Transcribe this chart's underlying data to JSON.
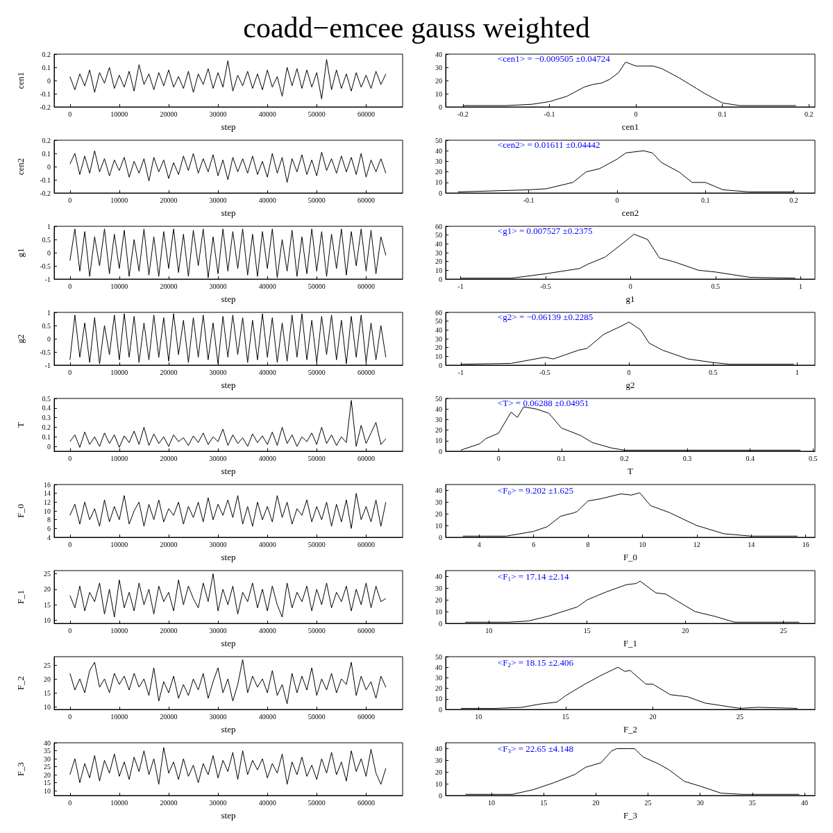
{
  "chart_data": [
    {
      "type": "line",
      "title": "coadd−emcee gauss weighted",
      "xlabel": "step",
      "ylabel": "cen1",
      "color": "#000000",
      "xlim": [
        -3200,
        67400
      ],
      "xticks": [
        0,
        10000,
        20000,
        30000,
        40000,
        50000,
        60000
      ],
      "ylim": [
        -0.2,
        0.2
      ],
      "yticks": [
        -0.2,
        -0.1,
        0,
        0.1,
        0.2
      ],
      "x": [
        0,
        1000,
        2000,
        3000,
        4000,
        5000,
        6000,
        7000,
        8000,
        9000,
        10000,
        11000,
        12000,
        13000,
        14000,
        15000,
        16000,
        17000,
        18000,
        19000,
        20000,
        21000,
        22000,
        23000,
        24000,
        25000,
        26000,
        27000,
        28000,
        29000,
        30000,
        31000,
        32000,
        33000,
        34000,
        35000,
        36000,
        37000,
        38000,
        39000,
        40000,
        41000,
        42000,
        43000,
        44000,
        45000,
        46000,
        47000,
        48000,
        49000,
        50000,
        51000,
        52000,
        53000,
        54000,
        55000,
        56000,
        57000,
        58000,
        59000,
        60000,
        61000,
        62000,
        63000,
        64000
      ],
      "values": [
        0.03,
        -0.07,
        0.05,
        -0.04,
        0.08,
        -0.09,
        0.06,
        -0.02,
        0.1,
        -0.06,
        0.04,
        -0.05,
        0.07,
        -0.08,
        0.12,
        -0.03,
        0.05,
        -0.07,
        0.06,
        -0.04,
        0.08,
        -0.05,
        0.03,
        -0.06,
        0.07,
        -0.09,
        0.05,
        -0.03,
        0.09,
        -0.06,
        0.06,
        -0.05,
        0.15,
        -0.08,
        0.04,
        -0.04,
        0.07,
        -0.06,
        0.05,
        -0.07,
        0.08,
        -0.05,
        0.03,
        -0.12,
        0.1,
        -0.04,
        0.09,
        -0.06,
        0.08,
        -0.05,
        0.06,
        -0.14,
        0.16,
        -0.07,
        0.08,
        -0.06,
        0.05,
        -0.08,
        0.06,
        -0.05,
        0.04,
        -0.06,
        0.07,
        -0.03,
        0.05
      ]
    },
    {
      "type": "line",
      "xlabel": "cen1",
      "annotations": [
        "<cen1> = −0.009505 ±0.04724"
      ],
      "color": "#000000",
      "xlim": [
        -0.22,
        0.207
      ],
      "xticks": [
        -0.2,
        -0.1,
        0,
        0.1,
        0.2
      ],
      "ylim": [
        0,
        40
      ],
      "yticks": [
        0,
        10,
        20,
        30,
        40
      ],
      "x": [
        -0.2,
        -0.15,
        -0.12,
        -0.1,
        -0.08,
        -0.06,
        -0.05,
        -0.04,
        -0.03,
        -0.02,
        -0.012,
        0,
        0.01,
        0.02,
        0.03,
        0.05,
        0.07,
        0.08,
        0.1,
        0.12,
        0.15,
        0.185
      ],
      "values": [
        1,
        1,
        2,
        4,
        8,
        15,
        17,
        18,
        21,
        26,
        34,
        31,
        31,
        31,
        29,
        22,
        14,
        10,
        3,
        1,
        1,
        1
      ]
    },
    {
      "type": "line",
      "xlabel": "step",
      "ylabel": "cen2",
      "color": "#000000",
      "xlim": [
        -3200,
        67400
      ],
      "xticks": [
        0,
        10000,
        20000,
        30000,
        40000,
        50000,
        60000
      ],
      "ylim": [
        -0.2,
        0.2
      ],
      "yticks": [
        -0.2,
        -0.1,
        0,
        0.1,
        0.2
      ],
      "x": [
        0,
        1000,
        2000,
        3000,
        4000,
        5000,
        6000,
        7000,
        8000,
        9000,
        10000,
        11000,
        12000,
        13000,
        14000,
        15000,
        16000,
        17000,
        18000,
        19000,
        20000,
        21000,
        22000,
        23000,
        24000,
        25000,
        26000,
        27000,
        28000,
        29000,
        30000,
        31000,
        32000,
        33000,
        34000,
        35000,
        36000,
        37000,
        38000,
        39000,
        40000,
        41000,
        42000,
        43000,
        44000,
        45000,
        46000,
        47000,
        48000,
        49000,
        50000,
        51000,
        52000,
        53000,
        54000,
        55000,
        56000,
        57000,
        58000,
        59000,
        60000,
        61000,
        62000,
        63000,
        64000
      ],
      "values": [
        0.02,
        0.1,
        -0.06,
        0.08,
        -0.05,
        0.12,
        -0.04,
        0.06,
        -0.07,
        0.05,
        -0.03,
        0.07,
        -0.08,
        0.04,
        -0.05,
        0.06,
        -0.11,
        0.07,
        -0.04,
        0.05,
        -0.09,
        0.03,
        -0.06,
        0.08,
        -0.03,
        0.1,
        -0.05,
        0.06,
        -0.04,
        0.09,
        -0.07,
        0.05,
        -0.1,
        0.07,
        -0.04,
        0.06,
        -0.05,
        0.08,
        -0.06,
        0.04,
        -0.08,
        0.1,
        -0.05,
        0.07,
        -0.12,
        0.06,
        -0.04,
        0.09,
        -0.06,
        0.05,
        -0.07,
        0.11,
        -0.03,
        0.06,
        -0.05,
        0.08,
        -0.04,
        0.07,
        -0.06,
        0.1,
        -0.08,
        0.05,
        -0.04,
        0.06,
        -0.05
      ]
    },
    {
      "type": "line",
      "xlabel": "cen2",
      "annotations": [
        "<cen2> = 0.01611 ±0.04442"
      ],
      "color": "#000000",
      "xlim": [
        -0.194,
        0.224
      ],
      "xticks": [
        -0.1,
        0,
        0.1,
        0.2
      ],
      "ylim": [
        0,
        50
      ],
      "yticks": [
        0,
        10,
        20,
        30,
        40,
        50
      ],
      "x": [
        -0.18,
        -0.1,
        -0.08,
        -0.05,
        -0.035,
        -0.02,
        0,
        0.01,
        0.03,
        0.04,
        0.05,
        0.07,
        0.085,
        0.1,
        0.12,
        0.15,
        0.2
      ],
      "values": [
        1,
        3,
        4,
        10,
        20,
        23,
        32,
        38,
        40,
        38,
        29,
        20,
        10,
        10,
        3,
        1,
        1
      ]
    },
    {
      "type": "line",
      "xlabel": "step",
      "ylabel": "g1",
      "color": "#000000",
      "xlim": [
        -3200,
        67400
      ],
      "xticks": [
        0,
        10000,
        20000,
        30000,
        40000,
        50000,
        60000
      ],
      "ylim": [
        -1,
        1
      ],
      "yticks": [
        -1,
        -0.5,
        0,
        0.5,
        1
      ],
      "x": [
        0,
        1000,
        2000,
        3000,
        4000,
        5000,
        6000,
        7000,
        8000,
        9000,
        10000,
        11000,
        12000,
        13000,
        14000,
        15000,
        16000,
        17000,
        18000,
        19000,
        20000,
        21000,
        22000,
        23000,
        24000,
        25000,
        26000,
        27000,
        28000,
        29000,
        30000,
        31000,
        32000,
        33000,
        34000,
        35000,
        36000,
        37000,
        38000,
        39000,
        40000,
        41000,
        42000,
        43000,
        44000,
        45000,
        46000,
        47000,
        48000,
        49000,
        50000,
        51000,
        52000,
        53000,
        54000,
        55000,
        56000,
        57000,
        58000,
        59000,
        60000,
        61000,
        62000,
        63000,
        64000
      ],
      "values": [
        -0.3,
        0.9,
        -0.7,
        0.8,
        -0.9,
        0.6,
        -0.5,
        0.9,
        -0.8,
        0.7,
        -0.6,
        0.85,
        -0.9,
        0.5,
        -0.7,
        0.9,
        -0.85,
        0.6,
        -0.9,
        0.8,
        -0.6,
        0.9,
        -0.75,
        0.7,
        -0.9,
        0.85,
        -0.5,
        0.9,
        -0.95,
        0.6,
        -0.8,
        0.9,
        -0.7,
        0.8,
        -0.6,
        0.9,
        -0.85,
        0.7,
        -0.9,
        0.8,
        -0.6,
        0.9,
        -0.95,
        0.5,
        -0.7,
        0.85,
        -0.9,
        0.6,
        -0.8,
        0.9,
        -0.7,
        0.8,
        -0.9,
        0.7,
        -0.6,
        0.9,
        -0.85,
        0.8,
        -0.5,
        0.9,
        -0.7,
        0.85,
        -0.8,
        0.6,
        -0.1
      ]
    },
    {
      "type": "line",
      "xlabel": "g1",
      "annotations": [
        "<g1> = 0.007527 ±0.2375"
      ],
      "color": "#000000",
      "xlim": [
        -1.088,
        1.085
      ],
      "xticks": [
        -1,
        -0.5,
        0,
        0.5,
        1
      ],
      "ylim": [
        0,
        60
      ],
      "yticks": [
        0,
        10,
        20,
        30,
        40,
        50,
        60
      ],
      "x": [
        -1,
        -0.7,
        -0.5,
        -0.3,
        -0.25,
        -0.15,
        -0.05,
        0.02,
        0.1,
        0.17,
        0.25,
        0.4,
        0.5,
        0.7,
        0.97
      ],
      "values": [
        1,
        1,
        6,
        12,
        17,
        25,
        40,
        51,
        45,
        24,
        20,
        10,
        8,
        2,
        1
      ]
    },
    {
      "type": "line",
      "xlabel": "step",
      "ylabel": "g2",
      "color": "#000000",
      "xlim": [
        -3200,
        67400
      ],
      "xticks": [
        0,
        10000,
        20000,
        30000,
        40000,
        50000,
        60000
      ],
      "ylim": [
        -1,
        1
      ],
      "yticks": [
        -1,
        -0.5,
        0,
        0.5,
        1
      ],
      "x": [
        0,
        1000,
        2000,
        3000,
        4000,
        5000,
        6000,
        7000,
        8000,
        9000,
        10000,
        11000,
        12000,
        13000,
        14000,
        15000,
        16000,
        17000,
        18000,
        19000,
        20000,
        21000,
        22000,
        23000,
        24000,
        25000,
        26000,
        27000,
        28000,
        29000,
        30000,
        31000,
        32000,
        33000,
        34000,
        35000,
        36000,
        37000,
        38000,
        39000,
        40000,
        41000,
        42000,
        43000,
        44000,
        45000,
        46000,
        47000,
        48000,
        49000,
        50000,
        51000,
        52000,
        53000,
        54000,
        55000,
        56000,
        57000,
        58000,
        59000,
        60000,
        61000,
        62000,
        63000,
        64000
      ],
      "values": [
        -0.8,
        0.9,
        -0.7,
        0.6,
        -0.9,
        0.8,
        -0.95,
        0.5,
        -0.6,
        0.9,
        -0.8,
        0.95,
        -0.7,
        0.85,
        -0.9,
        0.6,
        -0.8,
        0.9,
        -0.7,
        0.8,
        -0.85,
        0.95,
        -0.6,
        0.7,
        -0.9,
        0.8,
        -0.7,
        0.9,
        -0.8,
        0.6,
        -0.95,
        0.85,
        -0.7,
        0.9,
        -0.6,
        0.8,
        -0.9,
        0.7,
        -0.8,
        0.95,
        -0.7,
        0.8,
        -0.9,
        0.6,
        -0.85,
        0.9,
        -0.7,
        0.95,
        -0.8,
        0.7,
        -0.9,
        0.85,
        -0.6,
        0.9,
        -0.8,
        0.7,
        -0.95,
        0.85,
        -0.7,
        0.9,
        -0.9,
        0.6,
        -0.8,
        0.5,
        -0.7
      ]
    },
    {
      "type": "line",
      "xlabel": "g2",
      "annotations": [
        "<g2> = −0.06139 ±0.2285"
      ],
      "color": "#000000",
      "xlim": [
        -1.09,
        1.106
      ],
      "xticks": [
        -1,
        -0.5,
        0,
        0.5,
        1
      ],
      "ylim": [
        0,
        60
      ],
      "yticks": [
        0,
        10,
        20,
        30,
        40,
        50,
        60
      ],
      "x": [
        -1,
        -0.7,
        -0.5,
        -0.45,
        -0.3,
        -0.25,
        -0.15,
        -0.05,
        0,
        0.07,
        0.12,
        0.2,
        0.35,
        0.5,
        0.6,
        0.98
      ],
      "values": [
        1,
        2,
        9,
        7,
        17,
        19,
        35,
        44,
        49,
        40,
        25,
        17,
        7,
        3,
        1,
        1
      ]
    },
    {
      "type": "line",
      "xlabel": "step",
      "ylabel": "T",
      "color": "#000000",
      "xlim": [
        -3200,
        67400
      ],
      "xticks": [
        0,
        10000,
        20000,
        30000,
        40000,
        50000,
        60000
      ],
      "ylim": [
        -0.05,
        0.5
      ],
      "yticks": [
        0,
        0.1,
        0.2,
        0.3,
        0.4,
        0.5
      ],
      "x": [
        0,
        1000,
        2000,
        3000,
        4000,
        5000,
        6000,
        7000,
        8000,
        9000,
        10000,
        11000,
        12000,
        13000,
        14000,
        15000,
        16000,
        17000,
        18000,
        19000,
        20000,
        21000,
        22000,
        23000,
        24000,
        25000,
        26000,
        27000,
        28000,
        29000,
        30000,
        31000,
        32000,
        33000,
        34000,
        35000,
        36000,
        37000,
        38000,
        39000,
        40000,
        41000,
        42000,
        43000,
        44000,
        45000,
        46000,
        47000,
        48000,
        49000,
        50000,
        51000,
        52000,
        53000,
        54000,
        55000,
        56000,
        57000,
        58000,
        59000,
        60000,
        61000,
        62000,
        63000,
        64000
      ],
      "values": [
        0.05,
        0.12,
        -0.01,
        0.15,
        0.02,
        0.1,
        0.0,
        0.14,
        0.03,
        0.12,
        -0.01,
        0.11,
        0.04,
        0.16,
        0.02,
        0.2,
        0.01,
        0.13,
        0.03,
        0.1,
        0.0,
        0.12,
        0.05,
        0.09,
        0.01,
        0.11,
        0.04,
        0.14,
        0.02,
        0.1,
        0.05,
        0.18,
        0.01,
        0.12,
        0.03,
        0.09,
        0.0,
        0.13,
        0.04,
        0.11,
        0.02,
        0.15,
        0.01,
        0.2,
        0.03,
        0.12,
        0.0,
        0.1,
        0.05,
        0.14,
        0.02,
        0.2,
        0.03,
        0.12,
        0.01,
        0.1,
        0.04,
        0.48,
        0.0,
        0.22,
        0.03,
        0.14,
        0.25,
        0.02,
        0.08
      ]
    },
    {
      "type": "line",
      "xlabel": "T",
      "annotations": [
        "<T> = 0.06288 ±0.04951"
      ],
      "color": "#000000",
      "xlim": [
        -0.084,
        0.503
      ],
      "xticks": [
        0,
        0.1,
        0.2,
        0.3,
        0.4,
        0.5
      ],
      "ylim": [
        0,
        50
      ],
      "yticks": [
        0,
        10,
        20,
        30,
        40,
        50
      ],
      "x": [
        -0.06,
        -0.03,
        -0.02,
        0,
        0.02,
        0.03,
        0.04,
        0.06,
        0.08,
        0.1,
        0.13,
        0.15,
        0.18,
        0.2,
        0.48
      ],
      "values": [
        1,
        7,
        12,
        17,
        37,
        32,
        42,
        40,
        36,
        22,
        15,
        8,
        3,
        1,
        1
      ]
    },
    {
      "type": "line",
      "xlabel": "step",
      "ylabel": "F_0",
      "color": "#000000",
      "xlim": [
        -3200,
        67400
      ],
      "xticks": [
        0,
        10000,
        20000,
        30000,
        40000,
        50000,
        60000
      ],
      "ylim": [
        4,
        16
      ],
      "yticks": [
        4,
        6,
        8,
        10,
        12,
        14,
        16
      ],
      "x": [
        0,
        1000,
        2000,
        3000,
        4000,
        5000,
        6000,
        7000,
        8000,
        9000,
        10000,
        11000,
        12000,
        13000,
        14000,
        15000,
        16000,
        17000,
        18000,
        19000,
        20000,
        21000,
        22000,
        23000,
        24000,
        25000,
        26000,
        27000,
        28000,
        29000,
        30000,
        31000,
        32000,
        33000,
        34000,
        35000,
        36000,
        37000,
        38000,
        39000,
        40000,
        41000,
        42000,
        43000,
        44000,
        45000,
        46000,
        47000,
        48000,
        49000,
        50000,
        51000,
        52000,
        53000,
        54000,
        55000,
        56000,
        57000,
        58000,
        59000,
        60000,
        61000,
        62000,
        63000,
        64000
      ],
      "values": [
        9,
        11.5,
        7,
        12,
        8,
        10.5,
        6.5,
        12.5,
        7.5,
        11,
        8,
        13.5,
        7,
        10,
        12,
        6.5,
        11.5,
        8,
        12.5,
        7.5,
        10.5,
        9,
        12,
        7,
        11,
        8.5,
        12,
        7.5,
        13,
        8,
        11.5,
        9,
        12.5,
        8.5,
        13.5,
        7,
        11,
        6.5,
        12,
        8,
        11,
        7.5,
        13.5,
        8.5,
        12,
        7,
        10.5,
        9,
        12.5,
        7.5,
        11,
        8,
        12,
        6.5,
        11.5,
        7.5,
        12.5,
        6,
        14,
        8,
        11,
        7.5,
        12.5,
        6.5,
        12
      ]
    },
    {
      "type": "line",
      "xlabel": "F_0",
      "annotations": [
        "<F$_{0}$> = 9.202 ±1.625"
      ],
      "color": "#000000",
      "xlim": [
        2.77,
        16.34
      ],
      "xticks": [
        4,
        6,
        8,
        10,
        12,
        14,
        16
      ],
      "ylim": [
        0,
        45
      ],
      "yticks": [
        0,
        10,
        20,
        30,
        40
      ],
      "x": [
        3.4,
        4.2,
        5,
        6,
        6.5,
        7,
        7.5,
        7.6,
        8,
        8.5,
        9.2,
        9.6,
        9.9,
        10.3,
        11,
        12,
        13,
        14,
        15.7
      ],
      "values": [
        1,
        1,
        1,
        5,
        9,
        18,
        21,
        22,
        31,
        33,
        37,
        36,
        38,
        27,
        21,
        10,
        3,
        1,
        1
      ]
    },
    {
      "type": "line",
      "xlabel": "step",
      "ylabel": "F_1",
      "color": "#000000",
      "xlim": [
        -3200,
        67400
      ],
      "xticks": [
        0,
        10000,
        20000,
        30000,
        40000,
        50000,
        60000
      ],
      "ylim": [
        9,
        26
      ],
      "yticks": [
        10,
        15,
        20,
        25
      ],
      "x": [
        0,
        1000,
        2000,
        3000,
        4000,
        5000,
        6000,
        7000,
        8000,
        9000,
        10000,
        11000,
        12000,
        13000,
        14000,
        15000,
        16000,
        17000,
        18000,
        19000,
        20000,
        21000,
        22000,
        23000,
        24000,
        25000,
        26000,
        27000,
        28000,
        29000,
        30000,
        31000,
        32000,
        33000,
        34000,
        35000,
        36000,
        37000,
        38000,
        39000,
        40000,
        41000,
        42000,
        43000,
        44000,
        45000,
        46000,
        47000,
        48000,
        49000,
        50000,
        51000,
        52000,
        53000,
        54000,
        55000,
        56000,
        57000,
        58000,
        59000,
        60000,
        61000,
        62000,
        63000,
        64000
      ],
      "values": [
        18,
        14,
        21,
        13,
        19,
        16,
        22,
        12,
        20,
        11,
        23,
        14,
        19,
        13,
        22,
        15,
        20,
        12,
        21,
        16,
        19,
        13,
        23,
        15,
        21,
        17,
        14,
        22,
        16,
        25,
        13,
        20,
        15,
        21,
        12,
        19,
        16,
        22,
        14,
        20,
        13,
        21,
        15,
        11,
        22,
        14,
        19,
        16,
        21,
        13,
        20,
        15,
        22,
        14,
        19,
        16,
        21,
        13,
        20,
        15,
        22,
        14,
        21,
        16,
        17
      ]
    },
    {
      "type": "line",
      "xlabel": "F_1",
      "annotations": [
        "<F$_{1}$> = 17.14 ±2.14"
      ],
      "color": "#000000",
      "xlim": [
        7.8,
        26.6
      ],
      "xticks": [
        10,
        15,
        20,
        25
      ],
      "ylim": [
        0,
        45
      ],
      "yticks": [
        0,
        10,
        20,
        30,
        40
      ],
      "x": [
        8.8,
        11,
        12,
        13,
        14.5,
        15,
        16,
        17,
        17.5,
        17.7,
        18.5,
        19,
        19.5,
        20.5,
        21.5,
        22.5,
        25.8
      ],
      "values": [
        1,
        1,
        2,
        6,
        14,
        20,
        27,
        33,
        34,
        36,
        26,
        25,
        20,
        10,
        6,
        1,
        1
      ]
    },
    {
      "type": "line",
      "xlabel": "step",
      "ylabel": "F_2",
      "color": "#000000",
      "xlim": [
        -3200,
        67400
      ],
      "xticks": [
        0,
        10000,
        20000,
        30000,
        40000,
        50000,
        60000
      ],
      "ylim": [
        9,
        28
      ],
      "yticks": [
        10,
        15,
        20,
        25
      ],
      "x": [
        0,
        1000,
        2000,
        3000,
        4000,
        5000,
        6000,
        7000,
        8000,
        9000,
        10000,
        11000,
        12000,
        13000,
        14000,
        15000,
        16000,
        17000,
        18000,
        19000,
        20000,
        21000,
        22000,
        23000,
        24000,
        25000,
        26000,
        27000,
        28000,
        29000,
        30000,
        31000,
        32000,
        33000,
        34000,
        35000,
        36000,
        37000,
        38000,
        39000,
        40000,
        41000,
        42000,
        43000,
        44000,
        45000,
        46000,
        47000,
        48000,
        49000,
        50000,
        51000,
        52000,
        53000,
        54000,
        55000,
        56000,
        57000,
        58000,
        59000,
        60000,
        61000,
        62000,
        63000,
        64000
      ],
      "values": [
        22,
        16,
        20,
        15,
        23,
        26,
        17,
        20,
        15,
        22,
        18,
        21,
        16,
        22,
        17,
        20,
        14,
        24,
        12,
        19,
        15,
        21,
        13,
        18,
        14,
        20,
        16,
        22,
        13,
        19,
        24,
        15,
        20,
        12,
        18,
        27,
        15,
        21,
        17,
        20,
        15,
        23,
        14,
        18,
        11,
        22,
        15,
        21,
        16,
        24,
        14,
        20,
        16,
        22,
        15,
        20,
        18,
        26,
        14,
        21,
        16,
        19,
        13,
        21,
        17
      ]
    },
    {
      "type": "line",
      "xlabel": "F_2",
      "annotations": [
        "<F$_{2}$> = 18.15 ±2.406"
      ],
      "color": "#000000",
      "xlim": [
        8.12,
        29.3
      ],
      "xticks": [
        10,
        15,
        20,
        25
      ],
      "ylim": [
        0,
        50
      ],
      "yticks": [
        0,
        10,
        20,
        30,
        40,
        50
      ],
      "x": [
        9,
        11,
        12.5,
        13.5,
        14.5,
        15,
        16,
        17,
        18,
        18.4,
        18.7,
        19.6,
        20,
        21,
        22,
        23,
        25,
        26,
        28.3
      ],
      "values": [
        1,
        1,
        2,
        5,
        7,
        13,
        23,
        32,
        40,
        36,
        37,
        24,
        24,
        14,
        12,
        6,
        1,
        2,
        1
      ]
    },
    {
      "type": "line",
      "xlabel": "step",
      "ylabel": "F_3",
      "color": "#000000",
      "xlim": [
        -3200,
        67400
      ],
      "xticks": [
        0,
        10000,
        20000,
        30000,
        40000,
        50000,
        60000
      ],
      "ylim": [
        7,
        40
      ],
      "yticks": [
        10,
        15,
        20,
        25,
        30,
        35,
        40
      ],
      "x": [
        0,
        1000,
        2000,
        3000,
        4000,
        5000,
        6000,
        7000,
        8000,
        9000,
        10000,
        11000,
        12000,
        13000,
        14000,
        15000,
        16000,
        17000,
        18000,
        19000,
        20000,
        21000,
        22000,
        23000,
        24000,
        25000,
        26000,
        27000,
        28000,
        29000,
        30000,
        31000,
        32000,
        33000,
        34000,
        35000,
        36000,
        37000,
        38000,
        39000,
        40000,
        41000,
        42000,
        43000,
        44000,
        45000,
        46000,
        47000,
        48000,
        49000,
        50000,
        51000,
        52000,
        53000,
        54000,
        55000,
        56000,
        57000,
        58000,
        59000,
        60000,
        61000,
        62000,
        63000,
        64000
      ],
      "values": [
        20,
        30,
        15,
        27,
        18,
        32,
        16,
        29,
        21,
        33,
        19,
        28,
        17,
        31,
        22,
        35,
        20,
        30,
        14,
        37,
        21,
        28,
        17,
        30,
        19,
        26,
        15,
        27,
        20,
        32,
        18,
        29,
        22,
        34,
        17,
        35,
        20,
        29,
        23,
        30,
        18,
        27,
        21,
        33,
        14,
        28,
        20,
        31,
        19,
        26,
        17,
        30,
        21,
        34,
        20,
        28,
        16,
        35,
        22,
        30,
        19,
        36,
        21,
        14,
        24
      ]
    },
    {
      "type": "line",
      "xlabel": "F_3",
      "annotations": [
        "<F$_{3}$> = 22.65 ±4.148"
      ],
      "color": "#000000",
      "xlim": [
        5.6,
        41
      ],
      "xticks": [
        10,
        15,
        20,
        25,
        30,
        35,
        40
      ],
      "ylim": [
        0,
        45
      ],
      "yticks": [
        0,
        10,
        20,
        30,
        40
      ],
      "x": [
        7.5,
        10.5,
        12,
        14,
        16,
        18,
        19,
        20.5,
        21.5,
        22,
        23,
        23.7,
        24.5,
        26,
        27,
        28.5,
        30,
        32,
        34,
        39.5
      ],
      "values": [
        1,
        1,
        1,
        5,
        11,
        18,
        24,
        28,
        38,
        40,
        40,
        40,
        33,
        27,
        22,
        12,
        8,
        2,
        1,
        1
      ]
    }
  ]
}
